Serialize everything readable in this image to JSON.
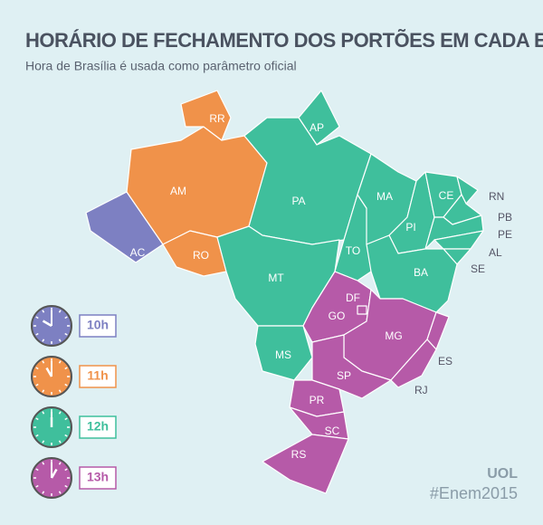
{
  "header": {
    "title": "HORÁRIO DE FECHAMENTO DOS PORTÕES EM CADA ESTADO",
    "subtitle": "Hora de Brasília é usada como parâmetro oficial"
  },
  "legend": {
    "items": [
      {
        "time": "10h",
        "color": "#7d80c2",
        "states": [
          "AC"
        ]
      },
      {
        "time": "11h",
        "color": "#f0924a",
        "states": [
          "AM",
          "RR",
          "RO"
        ]
      },
      {
        "time": "12h",
        "color": "#3fbf9c",
        "states": [
          "AP",
          "PA",
          "MT",
          "MS",
          "TO",
          "MA",
          "PI",
          "CE",
          "RN",
          "PB",
          "PE",
          "AL",
          "SE",
          "BA"
        ]
      },
      {
        "time": "13h",
        "color": "#b65aa8",
        "states": [
          "GO",
          "DF",
          "MG",
          "ES",
          "SP",
          "RJ",
          "PR",
          "SC",
          "RS"
        ]
      }
    ]
  },
  "footer": {
    "brand": "UOL",
    "hashtag": "#Enem2015"
  }
}
